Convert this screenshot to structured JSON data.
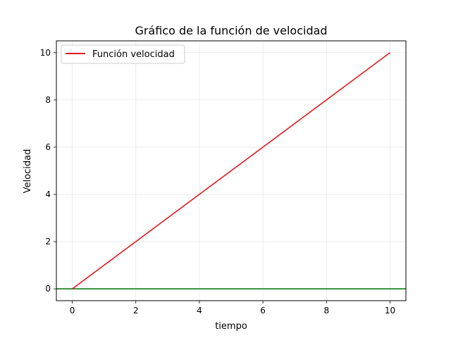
{
  "chart_data": {
    "type": "line",
    "title": "Gráfico de la función de velocidad",
    "xlabel": "tiempo",
    "ylabel": "Velocidad",
    "xlim": [
      -0.5,
      10.5
    ],
    "ylim": [
      -0.5,
      10.5
    ],
    "xticks": [
      0,
      2,
      4,
      6,
      8,
      10
    ],
    "yticks": [
      0,
      2,
      4,
      6,
      8,
      10
    ],
    "grid": true,
    "legend_position": "upper-left",
    "series": [
      {
        "name": "Función velocidad",
        "color": "#e31a1c",
        "x": [
          0,
          10
        ],
        "y": [
          0,
          10
        ]
      }
    ],
    "reference_lines": [
      {
        "orientation": "horizontal",
        "y": 0,
        "color": "#107c10"
      }
    ]
  }
}
